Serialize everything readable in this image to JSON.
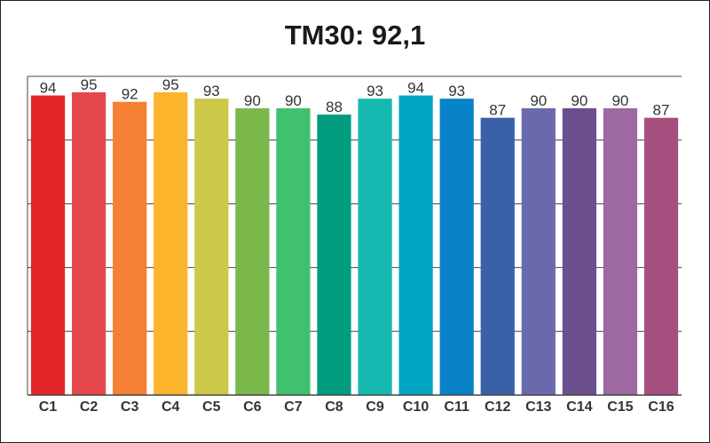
{
  "chart_data": {
    "type": "bar",
    "title": "TM30: 92,1",
    "categories": [
      "C1",
      "C2",
      "C3",
      "C4",
      "C5",
      "C6",
      "C7",
      "C8",
      "C9",
      "C10",
      "C11",
      "C12",
      "C13",
      "C14",
      "C15",
      "C16"
    ],
    "values": [
      94,
      95,
      92,
      95,
      93,
      90,
      90,
      88,
      93,
      94,
      93,
      87,
      90,
      90,
      90,
      87
    ],
    "ylim": [
      0,
      100
    ],
    "grid": true,
    "colors": [
      "#e32629",
      "#e6474c",
      "#f57f33",
      "#fcb42d",
      "#cbc84a",
      "#7bb84c",
      "#41c06e",
      "#019c7d",
      "#16b9b0",
      "#00a6c2",
      "#0883c7",
      "#3a60a7",
      "#6b69ae",
      "#6b4e8d",
      "#9e68a0",
      "#a74f7f"
    ]
  }
}
